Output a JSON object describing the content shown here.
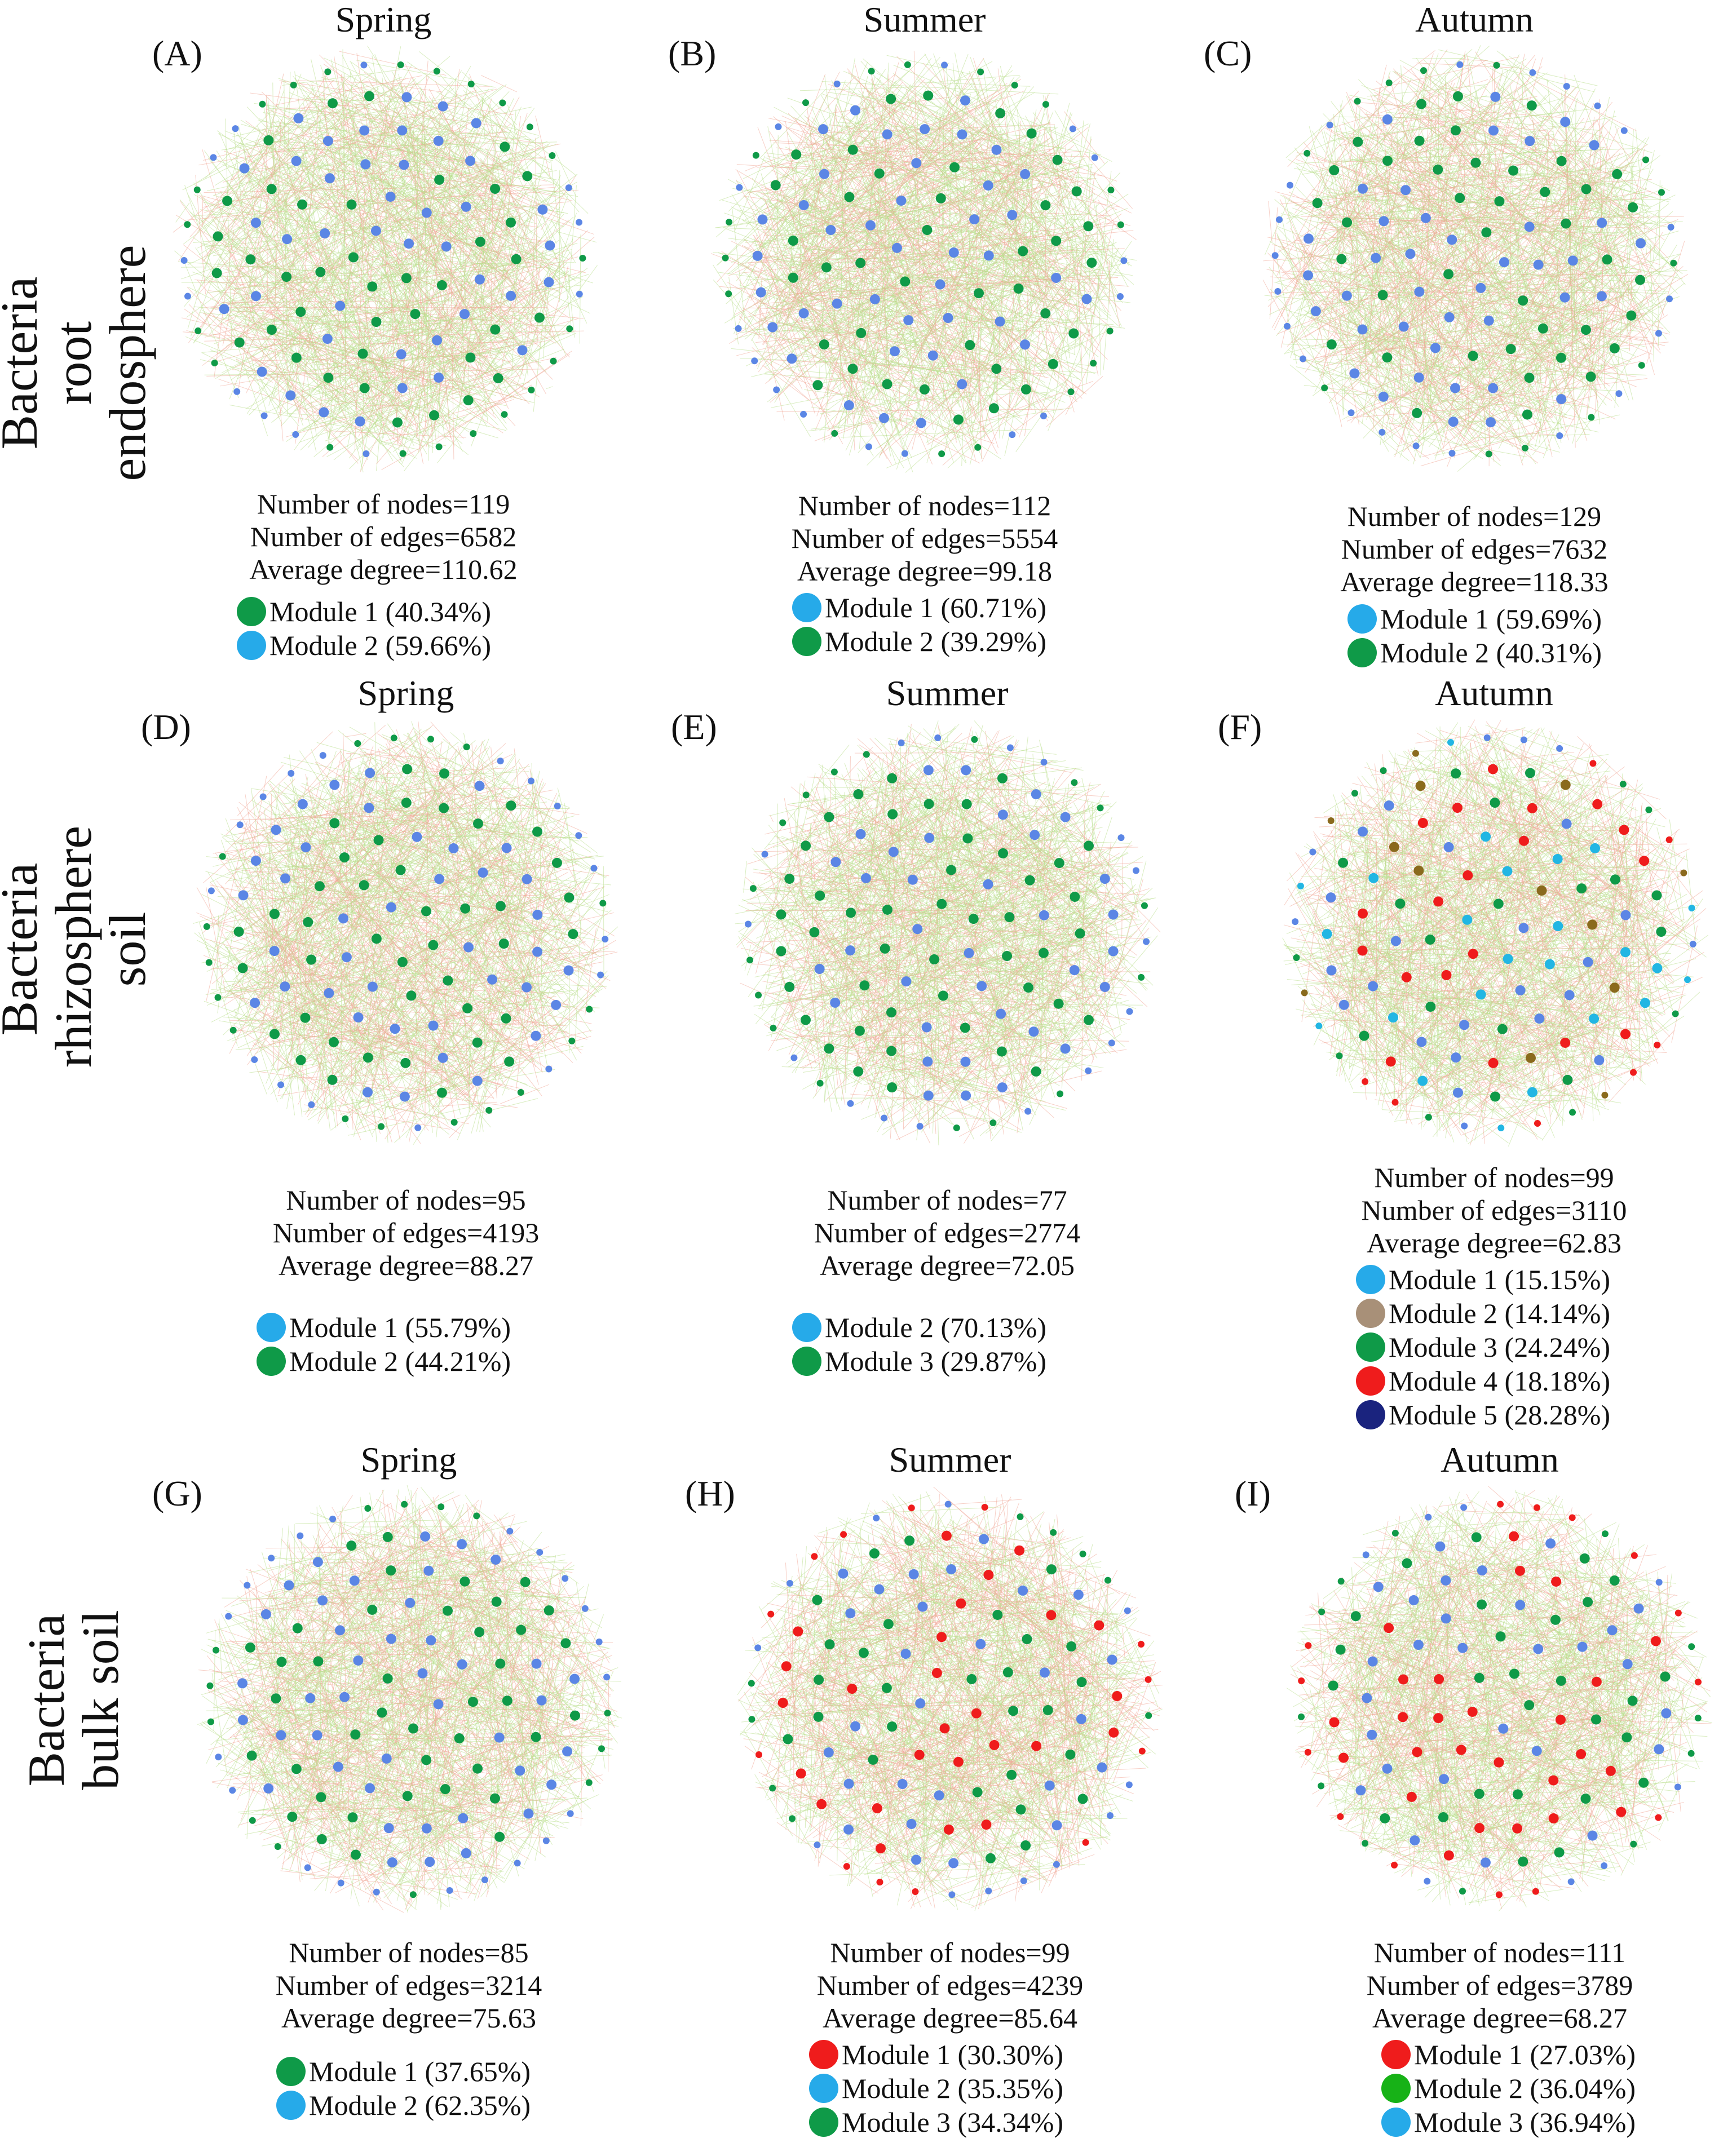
{
  "figure": {
    "rows": [
      {
        "line1": "Bacteria",
        "line2": "root endosphere"
      },
      {
        "line1": "Bacteria",
        "line2": "rhizosphere soil"
      },
      {
        "line1": "Bacteria",
        "line2": "bulk soil"
      }
    ],
    "colors": {
      "green": "#0f9a48",
      "blue": "#5b86e5",
      "red": "#ef1c1c",
      "brown": "#8a6a1d",
      "cyan": "#22b6e3",
      "navy": "#1a237e",
      "legend_blue": "#26aae9",
      "legend_green": "#0f9a48",
      "legend_brown": "#a89078",
      "legend_bright_green": "#17b217",
      "edge_green": "#b9df8c",
      "edge_red": "#f0a898"
    },
    "panels": [
      {
        "letter": "(A)",
        "season": "Spring",
        "nodes": "Number of nodes=119",
        "edges": "Number of edges=6582",
        "degree": "Average degree=110.62",
        "legend": [
          {
            "label": "Module 1 (40.34%)",
            "color": "legend_green"
          },
          {
            "label": "Module 2 (59.66%)",
            "color": "legend_blue"
          }
        ]
      },
      {
        "letter": "(B)",
        "season": "Summer",
        "nodes": "Number of nodes=112",
        "edges": "Number of edges=5554",
        "degree": "Average degree=99.18",
        "legend": [
          {
            "label": "Module 1 (60.71%)",
            "color": "legend_blue"
          },
          {
            "label": "Module 2 (39.29%)",
            "color": "legend_green"
          }
        ]
      },
      {
        "letter": "(C)",
        "season": "Autumn",
        "nodes": "Number of nodes=129",
        "edges": "Number of edges=7632",
        "degree": "Average degree=118.33",
        "legend": [
          {
            "label": "Module 1 (59.69%)",
            "color": "legend_blue"
          },
          {
            "label": "Module 2 (40.31%)",
            "color": "legend_green"
          }
        ]
      },
      {
        "letter": "(D)",
        "season": "Spring",
        "nodes": "Number of nodes=95",
        "edges": "Number of edges=4193",
        "degree": "Average degree=88.27",
        "legend": [
          {
            "label": "Module 1 (55.79%)",
            "color": "legend_blue"
          },
          {
            "label": "Module 2 (44.21%)",
            "color": "legend_green"
          }
        ]
      },
      {
        "letter": "(E)",
        "season": "Summer",
        "nodes": "Number of nodes=77",
        "edges": "Number of edges=2774",
        "degree": "Average degree=72.05",
        "legend": [
          {
            "label": "Module 2 (70.13%)",
            "color": "legend_blue"
          },
          {
            "label": "Module 3 (29.87%)",
            "color": "legend_green"
          }
        ]
      },
      {
        "letter": "(F)",
        "season": "Autumn",
        "nodes": "Number of nodes=99",
        "edges": "Number of edges=3110",
        "degree": "Average degree=62.83",
        "legend": [
          {
            "label": "Module 1 (15.15%)",
            "color": "legend_blue"
          },
          {
            "label": "Module 2 (14.14%)",
            "color": "legend_brown"
          },
          {
            "label": "Module 3 (24.24%)",
            "color": "legend_green"
          },
          {
            "label": "Module 4 (18.18%)",
            "color": "red"
          },
          {
            "label": "Module 5 (28.28%)",
            "color": "navy"
          }
        ]
      },
      {
        "letter": "(G)",
        "season": "Spring",
        "nodes": "Number of nodes=85",
        "edges": "Number of edges=3214",
        "degree": "Average degree=75.63",
        "legend": [
          {
            "label": "Module 1 (37.65%)",
            "color": "legend_green"
          },
          {
            "label": "Module 2 (62.35%)",
            "color": "legend_blue"
          }
        ]
      },
      {
        "letter": "(H)",
        "season": "Summer",
        "nodes": "Number of nodes=99",
        "edges": "Number of edges=4239",
        "degree": "Average degree=85.64",
        "legend": [
          {
            "label": "Module 1 (30.30%)",
            "color": "red"
          },
          {
            "label": "Module 2 (35.35%)",
            "color": "legend_blue"
          },
          {
            "label": "Module 3 (34.34%)",
            "color": "legend_green"
          }
        ]
      },
      {
        "letter": "(I)",
        "season": "Autumn",
        "nodes": "Number of nodes=111",
        "edges": "Number of edges=3789",
        "degree": "Average degree=68.27",
        "legend": [
          {
            "label": "Module 1 (27.03%)",
            "color": "red"
          },
          {
            "label": "Module 2 (36.04%)",
            "color": "legend_bright_green"
          },
          {
            "label": "Module 3 (36.94%)",
            "color": "legend_blue"
          }
        ]
      }
    ]
  }
}
